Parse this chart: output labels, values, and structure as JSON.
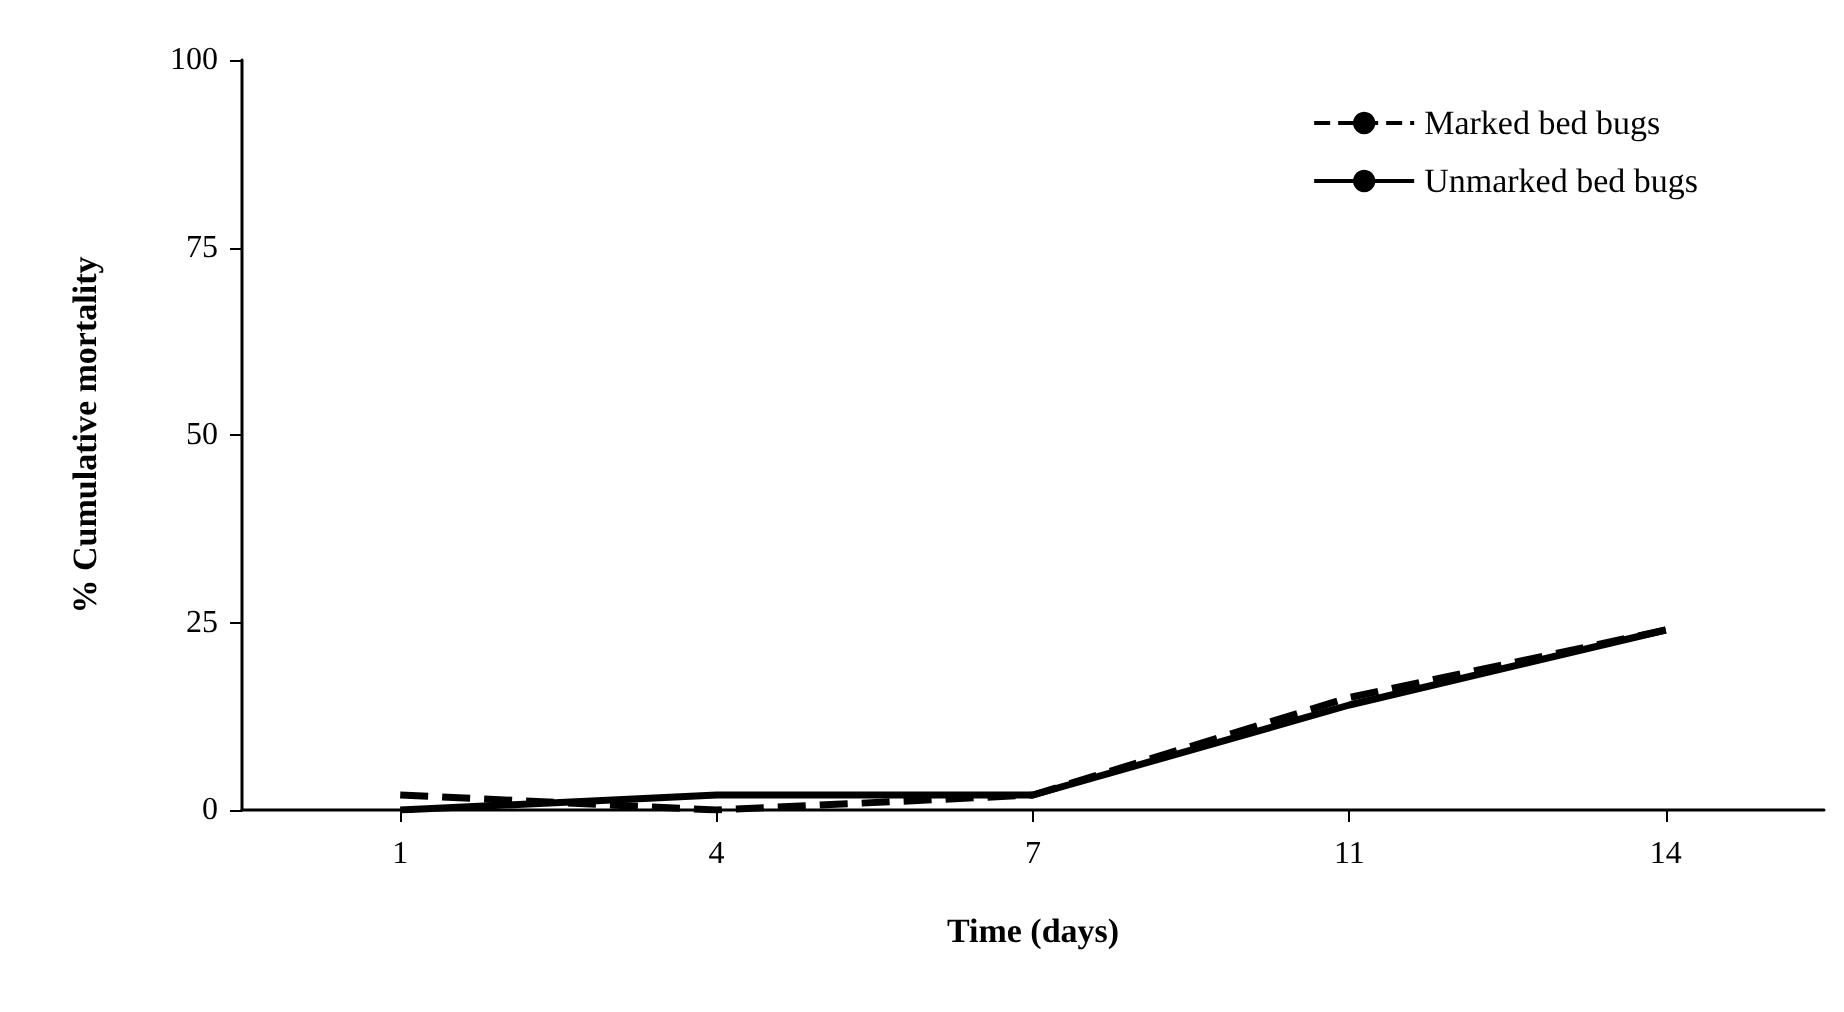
{
  "chart_data": {
    "type": "line",
    "xlabel": "Time (days)",
    "ylabel": "% Cumulative mortality",
    "categories": [
      "1",
      "4",
      "7",
      "11",
      "14"
    ],
    "series": [
      {
        "name": "Marked bed bugs",
        "color": "#000000",
        "line_style": "dashed",
        "values": [
          2,
          0,
          2,
          15,
          24
        ]
      },
      {
        "name": "Unmarked bed bugs",
        "color": "#000000",
        "line_style": "solid",
        "values": [
          0,
          2,
          2,
          14,
          24
        ]
      }
    ],
    "ylim": [
      0,
      100
    ],
    "yticks": [
      0,
      25,
      50,
      75,
      100
    ],
    "grid": false,
    "legend": "top right",
    "marker": "none"
  }
}
